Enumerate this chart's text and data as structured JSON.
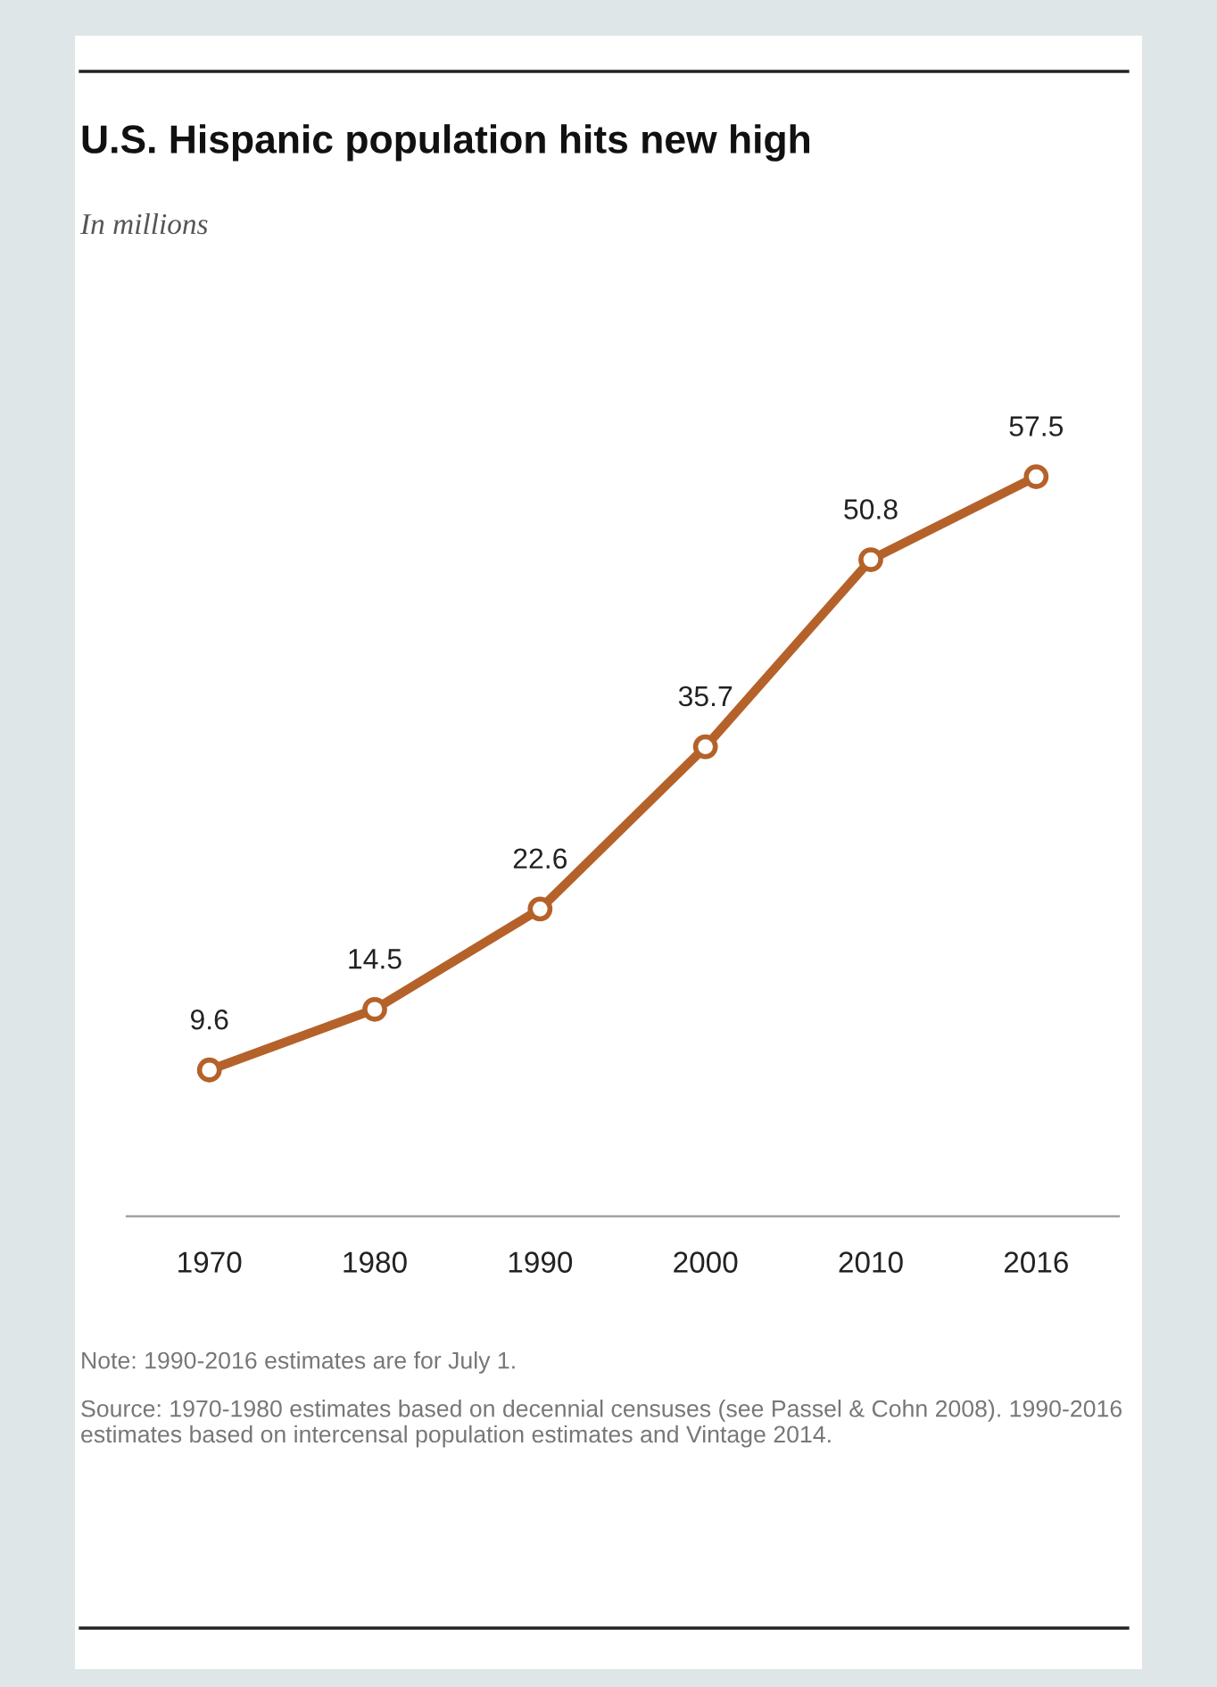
{
  "chart_data": {
    "type": "line",
    "title": "U.S. Hispanic population hits new high",
    "subtitle": "In millions",
    "categories": [
      "1970",
      "1980",
      "1990",
      "2000",
      "2010",
      "2016"
    ],
    "series": [
      {
        "color": "#b5622a",
        "values": [
          9.6,
          14.5,
          22.6,
          35.7,
          50.8,
          57.5
        ]
      }
    ],
    "data_labels": true,
    "marker": "circle",
    "tick_labels": "x",
    "annotations": [
      "Note: 1990-2016 estimates are for July 1.",
      "Source: 1970-1980 estimates based on decennial censuses (see Passel & Cohn 2008). 1990-2016  estimates based on intercensal population estimates and Vintage 2014."
    ]
  }
}
